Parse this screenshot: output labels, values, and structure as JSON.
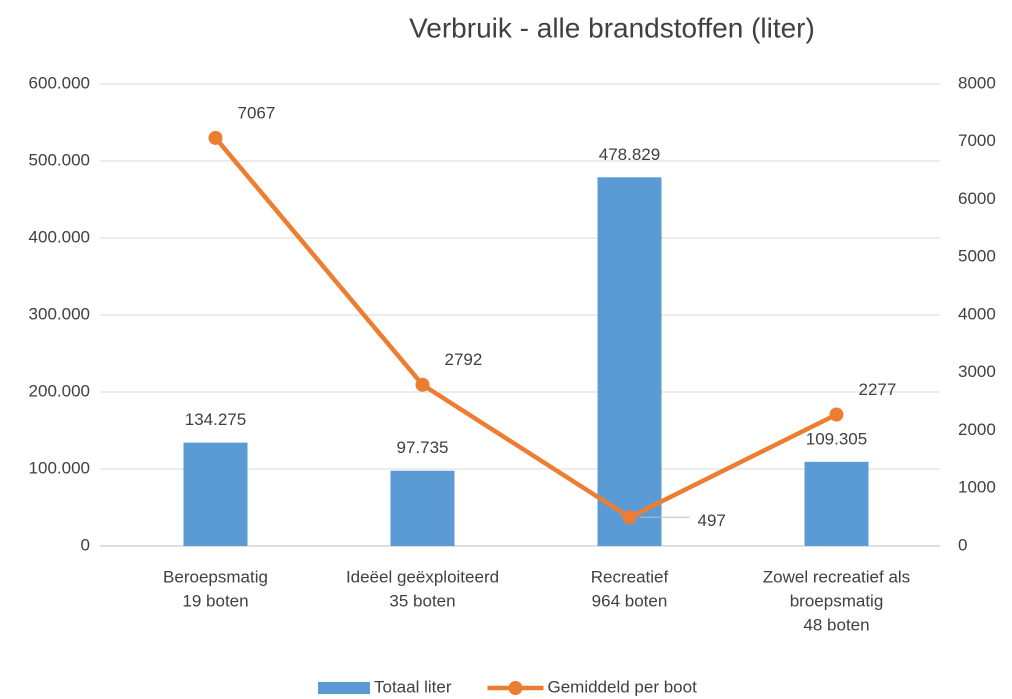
{
  "chart_data": {
    "type": "bar",
    "title": "Verbruik - alle brandstoffen (liter)",
    "categories": [
      [
        "Beroepsmatig",
        "19 boten"
      ],
      [
        "Ideëel geëxploiteerd",
        "35 boten"
      ],
      [
        "Recreatief",
        "964 boten"
      ],
      [
        "Zowel recreatief als",
        "broepsmatig",
        "48 boten"
      ]
    ],
    "series": [
      {
        "name": "Totaal liter",
        "type": "bar",
        "color": "#5b9bd5",
        "values": [
          134275,
          97735,
          478829,
          109305
        ],
        "value_labels": [
          "134.275",
          "97.735",
          "478.829",
          "109.305"
        ]
      },
      {
        "name": "Gemiddeld per boot",
        "type": "line",
        "axis": "y2",
        "color": "#ed7d31",
        "values": [
          7067,
          2792,
          497,
          2277
        ]
      }
    ],
    "ylim": [
      0,
      600000
    ],
    "yticks": [
      0,
      {
        "value": 100000,
        "label": "100.000"
      },
      {
        "value": 200000,
        "label": "200.000"
      },
      {
        "value": 300000,
        "label": "300.000"
      },
      {
        "value": 400000,
        "label": "400.000"
      },
      {
        "value": 500000,
        "label": "500.000"
      },
      {
        "value": 600000,
        "label": "600.000"
      }
    ],
    "y2lim": [
      0,
      8000
    ],
    "y2ticks": [
      0,
      1000,
      2000,
      3000,
      4000,
      5000,
      6000,
      7000,
      8000
    ],
    "grid": true,
    "legend": "bottom"
  }
}
